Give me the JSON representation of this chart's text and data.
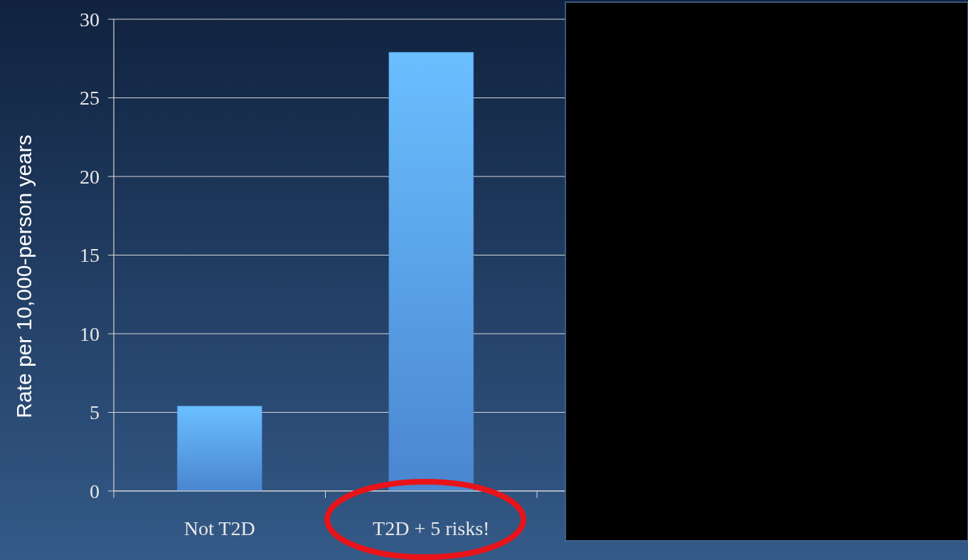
{
  "chart_data": {
    "type": "bar",
    "ylabel": "Rate per 10,000-person years",
    "categories": [
      "Not T2D",
      "T2D + 5 risks!"
    ],
    "series": [
      {
        "color": "#4a86d0",
        "values": [
          5.4,
          27.9
        ]
      }
    ],
    "ylim": [
      0,
      30
    ],
    "yticks": [
      0,
      5,
      10,
      15,
      20,
      25,
      30
    ],
    "grid": "y"
  }
}
